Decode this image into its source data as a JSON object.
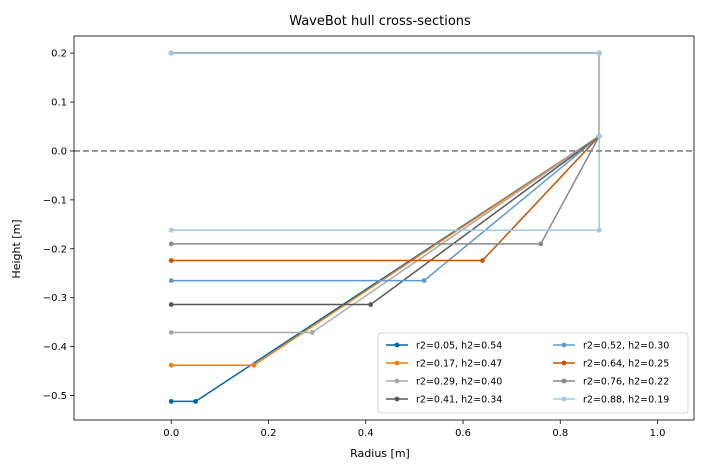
{
  "chart_data": {
    "type": "line",
    "title": "WaveBot hull cross-sections",
    "xlabel": "Radius [m]",
    "ylabel": "Height [m]",
    "xlim": [
      -0.2,
      1.075
    ],
    "ylim": [
      -0.55,
      0.235
    ],
    "xticks": [
      0.0,
      0.2,
      0.4,
      0.6,
      0.8,
      1.0
    ],
    "xtick_labels": [
      "0.0",
      "0.2",
      "0.4",
      "0.6",
      "0.8",
      "1.0"
    ],
    "yticks": [
      -0.5,
      -0.4,
      -0.3,
      -0.2,
      -0.1,
      0.0,
      0.1,
      0.2
    ],
    "ytick_labels": [
      "−0.5",
      "−0.4",
      "−0.3",
      "−0.2",
      "−0.1",
      "0.0",
      "0.1",
      "0.2"
    ],
    "waterline": {
      "y": 0.0,
      "color": "#808080"
    },
    "grid": false,
    "legend_position": "lower-right",
    "legend_columns": 2,
    "series": [
      {
        "name": "r2=0.05, h2=0.54",
        "color": "#0066a6",
        "x": [
          0,
          0.88,
          0.88,
          0.05,
          0
        ],
        "y": [
          0.2,
          0.2,
          0.03,
          -0.512,
          -0.512
        ]
      },
      {
        "name": "r2=0.17, h2=0.47",
        "color": "#f07f12",
        "x": [
          0,
          0.88,
          0.88,
          0.17,
          0
        ],
        "y": [
          0.2,
          0.2,
          0.03,
          -0.438,
          -0.438
        ]
      },
      {
        "name": "r2=0.29, h2=0.40",
        "color": "#aaaaaa",
        "x": [
          0,
          0.88,
          0.88,
          0.29,
          0
        ],
        "y": [
          0.2,
          0.2,
          0.03,
          -0.371,
          -0.371
        ]
      },
      {
        "name": "r2=0.41, h2=0.34",
        "color": "#595959",
        "x": [
          0,
          0.88,
          0.88,
          0.41,
          0
        ],
        "y": [
          0.2,
          0.2,
          0.03,
          -0.314,
          -0.314
        ]
      },
      {
        "name": "r2=0.52, h2=0.30",
        "color": "#5b9bd1",
        "x": [
          0,
          0.88,
          0.88,
          0.52,
          0
        ],
        "y": [
          0.2,
          0.2,
          0.03,
          -0.265,
          -0.265
        ]
      },
      {
        "name": "r2=0.64, h2=0.25",
        "color": "#c85200",
        "x": [
          0,
          0.88,
          0.88,
          0.64,
          0
        ],
        "y": [
          0.2,
          0.2,
          0.03,
          -0.224,
          -0.224
        ]
      },
      {
        "name": "r2=0.76, h2=0.22",
        "color": "#898989",
        "x": [
          0,
          0.88,
          0.88,
          0.76,
          0
        ],
        "y": [
          0.2,
          0.2,
          0.03,
          -0.19,
          -0.19
        ]
      },
      {
        "name": "r2=0.88, h2=0.19",
        "color": "#a3c8e6",
        "x": [
          0,
          0.88,
          0.88,
          0.88,
          0
        ],
        "y": [
          0.2,
          0.2,
          0.03,
          -0.162,
          -0.162
        ]
      }
    ]
  }
}
